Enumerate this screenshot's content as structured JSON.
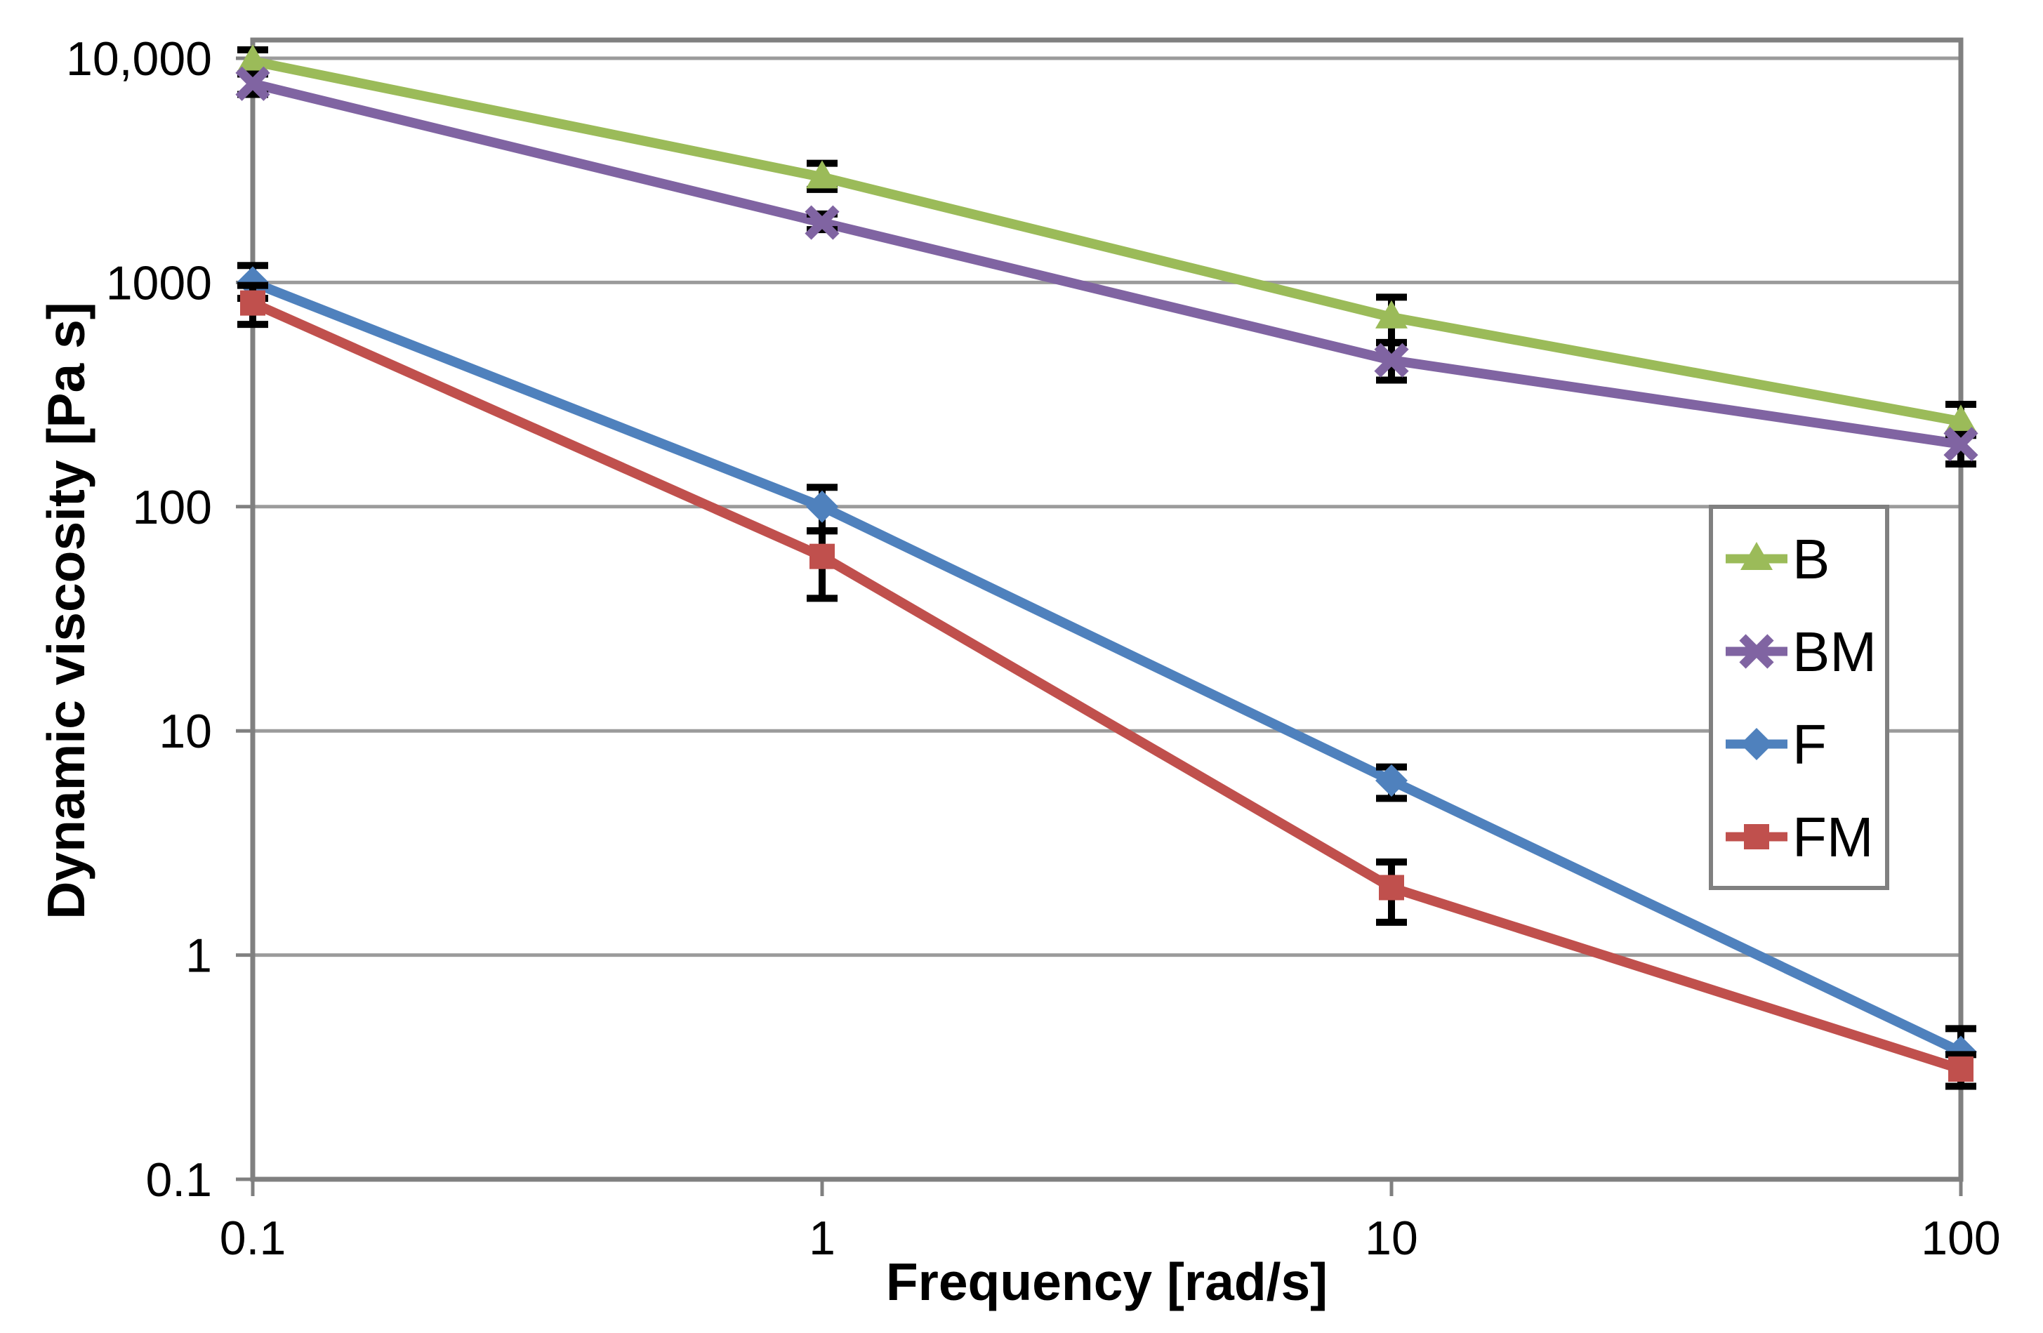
{
  "figure": {
    "background": "#FFFFFF",
    "text_color": "#000000",
    "axis_color": "#808080",
    "gridline_color": "#9B9B9B",
    "error_bar_color": "#000000"
  },
  "chart_data": {
    "type": "line",
    "title": "",
    "xlabel": "Frequency [rad/s]",
    "ylabel": "Dynamic viscosity [Pa s]",
    "x_scale": "log",
    "y_scale": "log",
    "xlim": [
      0.1,
      100
    ],
    "ylim": [
      0.1,
      10000
    ],
    "grid": true,
    "legend_position": "right-inside",
    "x": [
      0.1,
      1,
      10,
      100
    ],
    "x_tick_labels": [
      "0.1",
      "1",
      "10",
      "100"
    ],
    "y_tick_values": [
      10000,
      1000,
      100,
      10,
      1,
      0.1
    ],
    "y_tick_labels": [
      "10,000",
      "1000",
      "100",
      "10",
      "1",
      "0.1"
    ],
    "series": [
      {
        "name": "B",
        "marker": "triangle",
        "color": "#9BBB59",
        "values": [
          9700,
          2950,
          700,
          240
        ],
        "err_plus": [
          1200,
          450,
          160,
          46
        ],
        "err_minus": [
          1200,
          350,
          160,
          32
        ]
      },
      {
        "name": "BM",
        "marker": "x",
        "color": "#8064A2",
        "values": [
          7700,
          1850,
          450,
          190
        ],
        "err_plus": [
          800,
          170,
          88,
          20
        ],
        "err_minus": [
          800,
          130,
          83,
          35
        ]
      },
      {
        "name": "F",
        "marker": "diamond",
        "color": "#4F81BD",
        "values": [
          1000,
          100,
          6,
          0.37
        ],
        "err_plus": [
          190,
          22,
          0.9,
          0.1
        ],
        "err_minus": [
          150,
          22,
          1.0,
          0.11
        ]
      },
      {
        "name": "FM",
        "marker": "square",
        "color": "#C0504D",
        "values": [
          810,
          60,
          2,
          0.31
        ],
        "err_plus": [
          160,
          18,
          0.6,
          0.05
        ],
        "err_minus": [
          160,
          21,
          0.6,
          0.05
        ]
      }
    ]
  }
}
